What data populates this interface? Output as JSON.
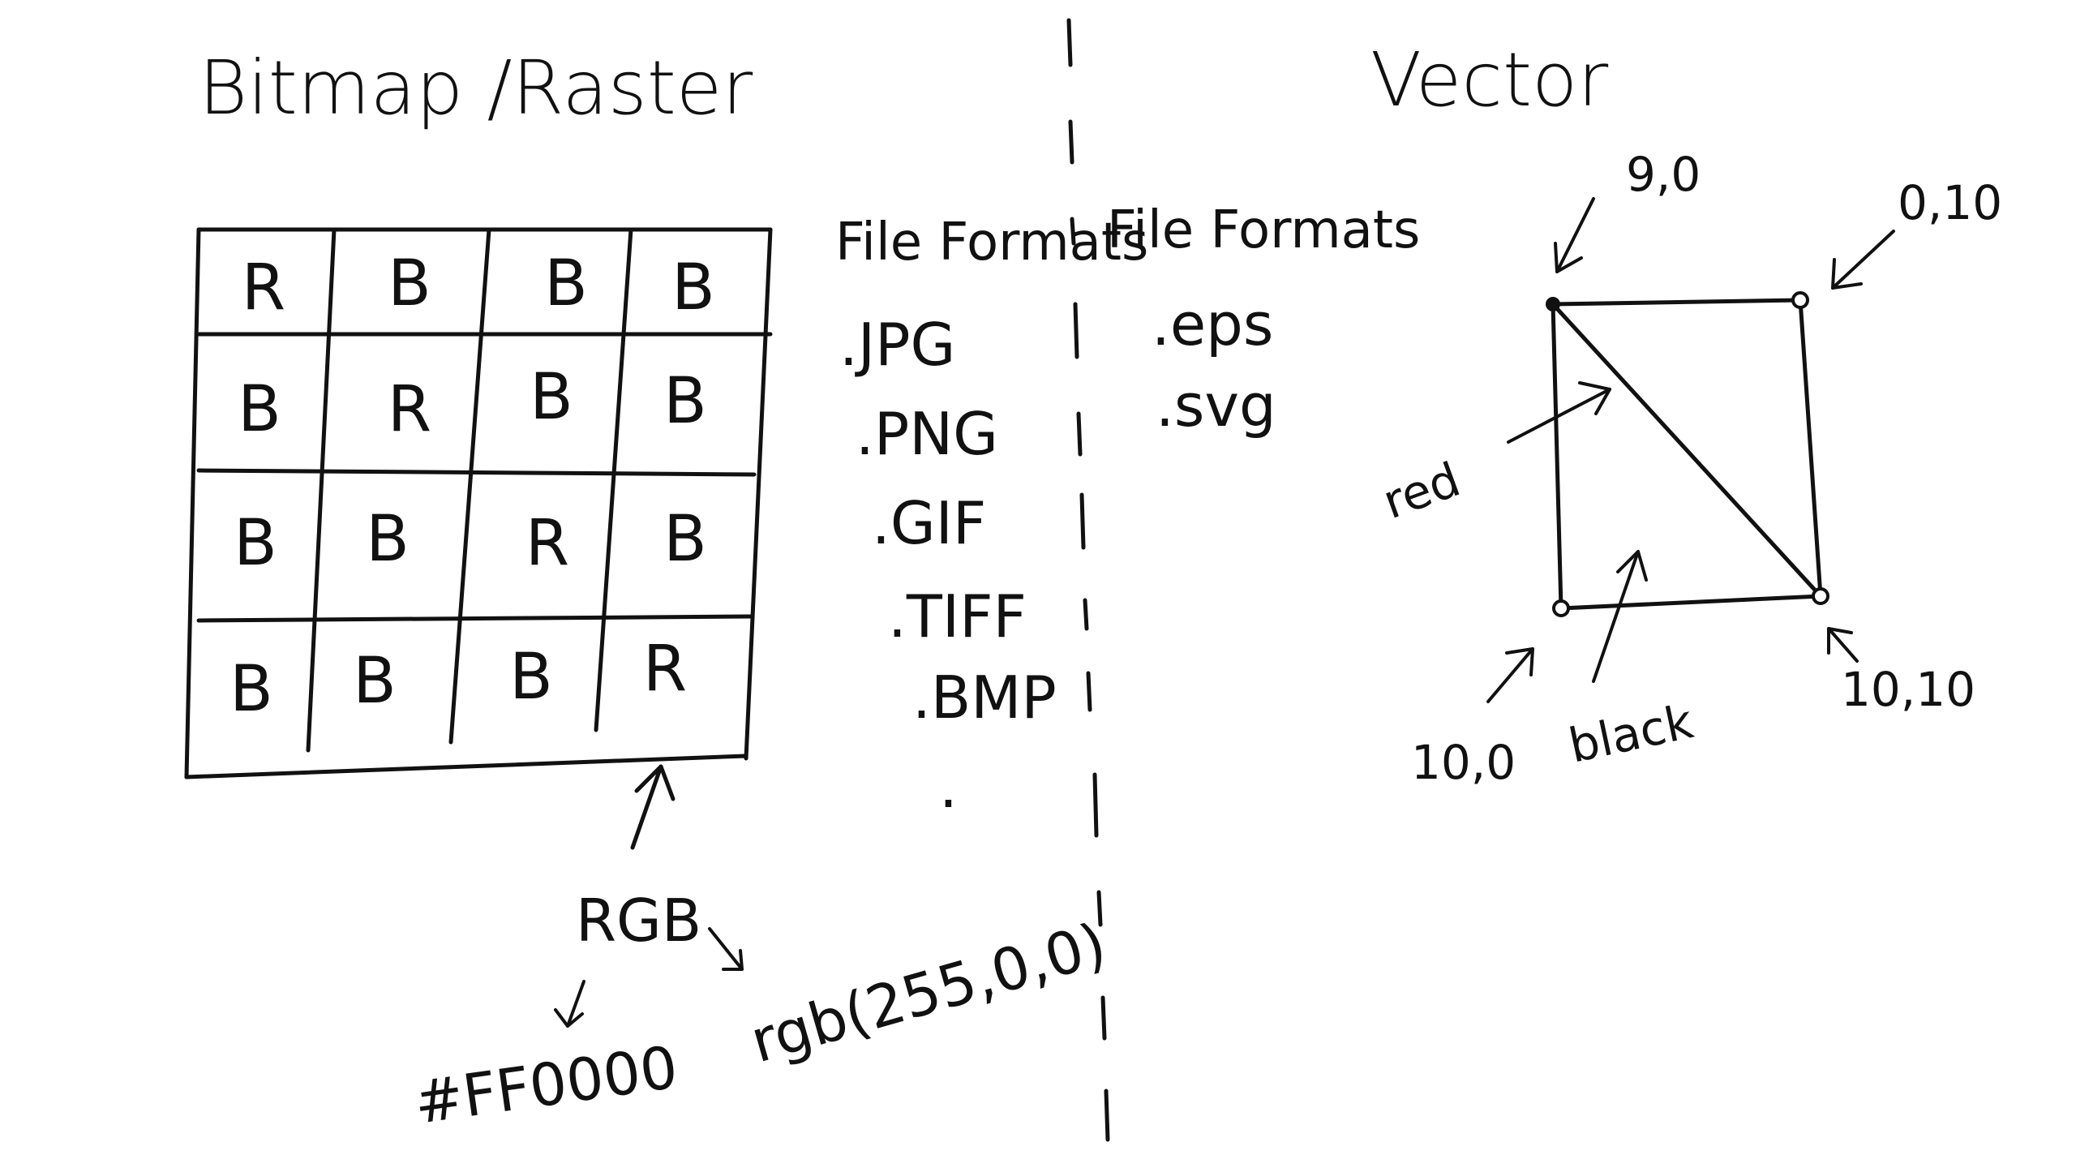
{
  "left_title": "Bitmap /Raster",
  "right_title": "Vector",
  "raster_grid": [
    [
      "R",
      "B",
      "B",
      "B"
    ],
    [
      "B",
      "R",
      "B",
      "B"
    ],
    [
      "B",
      "B",
      "R",
      "B"
    ],
    [
      "B",
      "B",
      "B",
      "R"
    ]
  ],
  "raster_formats": {
    "header": "File Formats",
    "items": [
      ".JPG",
      ".PNG",
      ".GIF",
      ".TIFF",
      ".BMP",
      "."
    ]
  },
  "vector_formats": {
    "header": "File Formats",
    "items": [
      ".eps",
      ".svg"
    ]
  },
  "color_model": {
    "label": "RGB",
    "hex": "#FF0000",
    "rgb": "rgb(255,0,0)"
  },
  "vector_points": {
    "top_left": "9,0",
    "top_right": "0,10",
    "bottom_left": "10,0",
    "bottom_right": "10,10"
  },
  "vector_labels": {
    "diagonal": "red",
    "border": "black"
  },
  "colors": {
    "ink": "#111111",
    "background": "#ffffff"
  }
}
